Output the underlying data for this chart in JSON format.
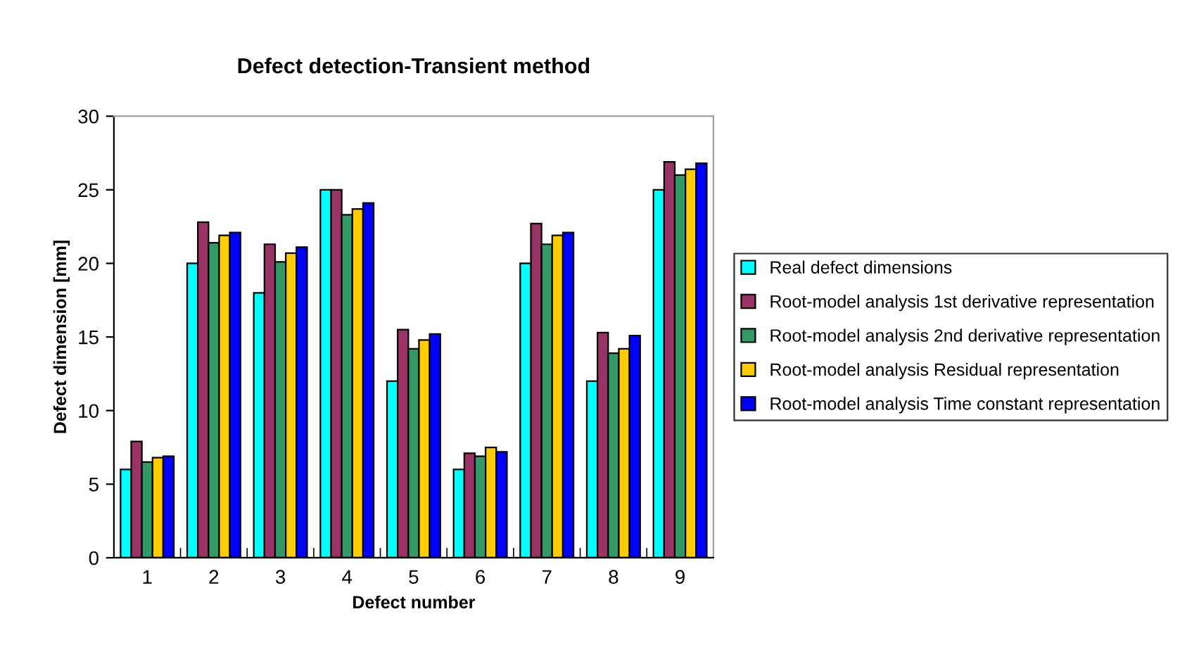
{
  "chart_data": {
    "type": "bar",
    "title": "Defect detection-Transient method",
    "xlabel": "Defect number",
    "ylabel": "Defect dimension [mm]",
    "categories": [
      "1",
      "2",
      "3",
      "4",
      "5",
      "6",
      "7",
      "8",
      "9"
    ],
    "series": [
      {
        "name": "Real defect dimensions",
        "color": "#00ffff",
        "values": [
          6,
          20,
          18,
          25,
          12,
          6,
          20,
          12,
          25
        ]
      },
      {
        "name": "Root-model analysis 1st derivative representation",
        "color": "#993366",
        "values": [
          7.9,
          22.8,
          21.3,
          25,
          15.5,
          7.1,
          22.7,
          15.3,
          26.9
        ]
      },
      {
        "name": "Root-model analysis 2nd derivative representation",
        "color": "#339966",
        "values": [
          6.5,
          21.4,
          20.1,
          23.3,
          14.2,
          6.9,
          21.3,
          13.9,
          26.0
        ]
      },
      {
        "name": "Root-model analysis Residual representation",
        "color": "#ffcc00",
        "values": [
          6.8,
          21.9,
          20.7,
          23.7,
          14.8,
          7.5,
          21.9,
          14.2,
          26.4
        ]
      },
      {
        "name": "Root-model analysis Time constant representation",
        "color": "#0000ff",
        "values": [
          6.9,
          22.1,
          21.1,
          24.1,
          15.2,
          7.2,
          22.1,
          15.1,
          26.8
        ]
      }
    ],
    "ylim": [
      0,
      30
    ],
    "yticks": [
      0,
      5,
      10,
      15,
      20,
      25,
      30
    ],
    "grid": false,
    "legend": "right"
  }
}
